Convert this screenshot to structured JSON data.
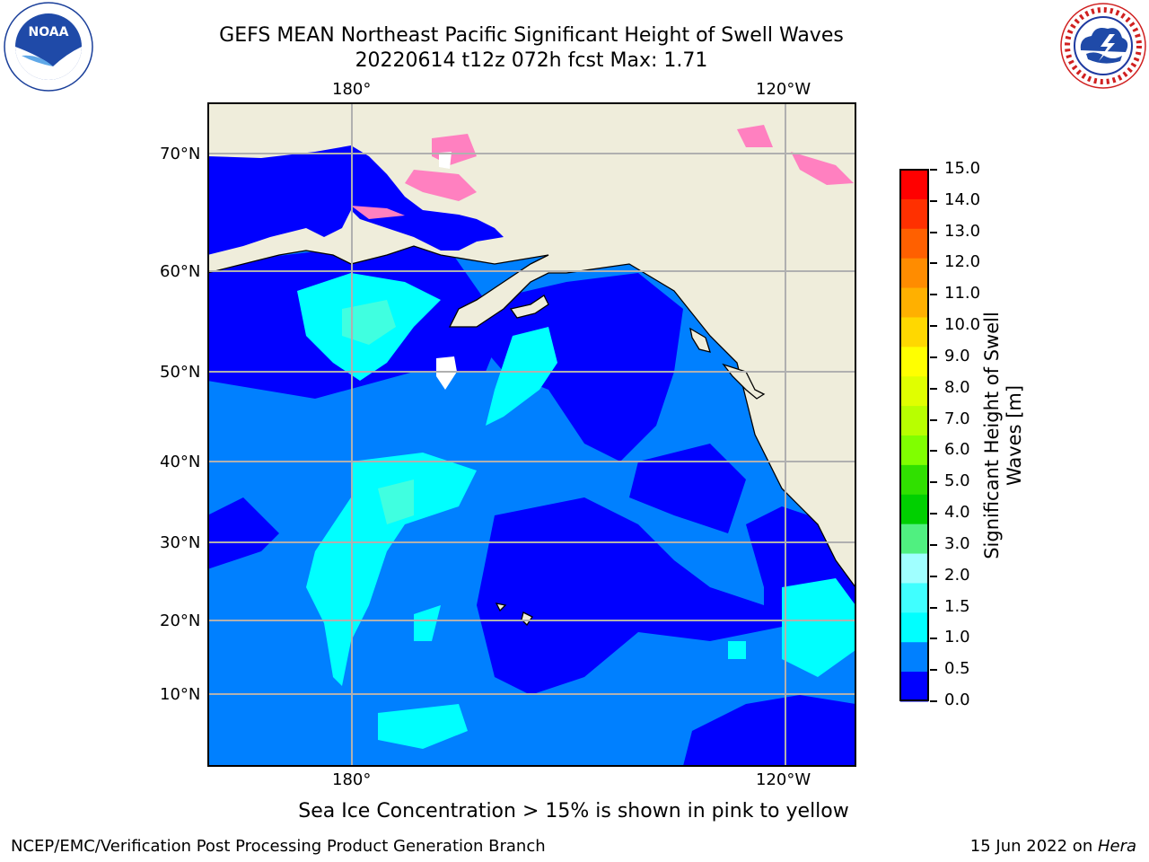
{
  "header": {
    "title_line1": "GEFS MEAN Northeast Pacific Significant Height of Swell Waves",
    "title_line2": "20220614 t12z 072h fcst   Max: 1.71"
  },
  "logos": {
    "left": "NOAA",
    "left_ring_text": "NATIONAL OCEANIC AND ATMOSPHERIC ADMINISTRATION · U.S. DEPARTMENT OF COMMERCE",
    "right_ring_text": "NATIONAL WEATHER SERVICE"
  },
  "map": {
    "lon_labels_top": [
      "180°",
      "120°W"
    ],
    "lon_labels_bottom": [
      "180°",
      "120°W"
    ],
    "lat_labels": [
      "70°N",
      "60°N",
      "50°N",
      "40°N",
      "30°N",
      "20°N",
      "10°N"
    ],
    "colors": {
      "land": "#efeddb",
      "level_0_0p5": "#0000ff",
      "level_0p5_1": "#0080ff",
      "level_1_1p5": "#00ffff",
      "level_1p5_2": "#40ffe0",
      "sea_ice": "#ff80c0"
    }
  },
  "colorbar": {
    "label_line1": "Significant Height of Swell",
    "label_line2": "Waves [m]",
    "ticks": [
      "15.0",
      "14.0",
      "13.0",
      "12.0",
      "11.0",
      "10.0",
      "9.0",
      "8.0",
      "7.0",
      "6.0",
      "5.0",
      "4.0",
      "3.0",
      "2.0",
      "1.5",
      "1.0",
      "0.5",
      "0.0"
    ],
    "colors_top_to_bottom": [
      "#ff0000",
      "#ff3000",
      "#ff6000",
      "#ff8c00",
      "#ffb000",
      "#ffd800",
      "#ffff00",
      "#e0ff00",
      "#b8ff00",
      "#80ff00",
      "#30e000",
      "#00d000",
      "#50f080",
      "#a0ffff",
      "#40ffff",
      "#00ffff",
      "#0080ff",
      "#0000ff"
    ]
  },
  "footer": {
    "note": "Sea Ice Concentration > 15% is shown in pink to yellow",
    "credit": "NCEP/EMC/Verification Post Processing Product Generation Branch",
    "date_prefix": "15 Jun 2022 on ",
    "date_host": "Hera"
  }
}
